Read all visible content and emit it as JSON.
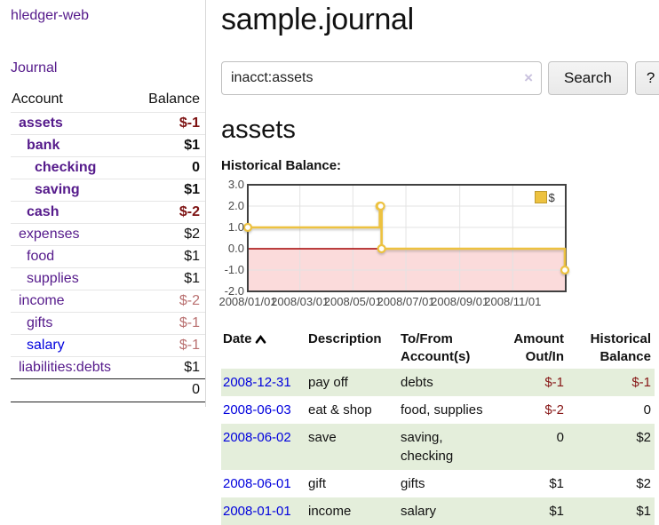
{
  "sidebar": {
    "brand": "hledger-web",
    "journal_label": "Journal",
    "accounts_table": {
      "headers": {
        "account": "Account",
        "balance": "Balance"
      },
      "rows": [
        {
          "name": "assets",
          "depth": 1,
          "balance": "$-1",
          "bold": true
        },
        {
          "name": "bank",
          "depth": 2,
          "balance": "$1",
          "bold": true
        },
        {
          "name": "checking",
          "depth": 3,
          "balance": "0",
          "bold": true
        },
        {
          "name": "saving",
          "depth": 3,
          "balance": "$1",
          "bold": true
        },
        {
          "name": "cash",
          "depth": 2,
          "balance": "$-2",
          "bold": true
        },
        {
          "name": "expenses",
          "depth": 1,
          "balance": "$2",
          "bold": false
        },
        {
          "name": "food",
          "depth": 2,
          "balance": "$1",
          "bold": false
        },
        {
          "name": "supplies",
          "depth": 2,
          "balance": "$1",
          "bold": false
        },
        {
          "name": "income",
          "depth": 1,
          "balance": "$-2",
          "bold": false
        },
        {
          "name": "gifts",
          "depth": 2,
          "balance": "$-1",
          "bold": false
        },
        {
          "name": "salary",
          "depth": 2,
          "balance": "$-1",
          "bold": false,
          "unvisited": true
        },
        {
          "name": "liabilities:debts",
          "depth": 1,
          "balance": "$1",
          "bold": false
        }
      ],
      "total": "0"
    }
  },
  "header": {
    "title": "sample.journal"
  },
  "search": {
    "value": "inacct:assets",
    "clear_icon": "×",
    "button_label": "Search",
    "help_label": "?"
  },
  "account_page": {
    "title": "assets",
    "chart_label": "Historical Balance:"
  },
  "chart_data": {
    "type": "line",
    "step": true,
    "title": "Historical Balance:",
    "xlabel": "",
    "ylabel": "",
    "xlim": [
      "2008-01-01",
      "2009-01-01"
    ],
    "ylim": [
      -2,
      3
    ],
    "yticks": {
      "values": [
        3,
        2,
        1,
        0,
        -1,
        -2
      ],
      "labels": [
        "3.0",
        "2.0",
        "1.0",
        "0.0",
        "-1.0",
        "-2.0"
      ]
    },
    "xticks": {
      "dates": [
        "2008-01-01",
        "2008-03-01",
        "2008-05-01",
        "2008-07-01",
        "2008-09-01",
        "2008-11-01"
      ],
      "labels": [
        "2008/01/01",
        "2008/03/01",
        "2008/05/01",
        "2008/07/01",
        "2008/09/01",
        "2008/11/01"
      ]
    },
    "series": [
      {
        "name": "$",
        "color": "#edc240",
        "points": [
          [
            "2008-01-01",
            1
          ],
          [
            "2008-06-01",
            2
          ],
          [
            "2008-06-02",
            2
          ],
          [
            "2008-06-03",
            0
          ],
          [
            "2008-12-31",
            -1
          ]
        ]
      }
    ],
    "legend": {
      "label": "$",
      "position": "top-right"
    },
    "grid": true,
    "zero_line_color": "#a40000",
    "negative_region_color": "#fbdbdb",
    "frame_color": "#404040"
  },
  "register_table": {
    "headers": {
      "date": "Date",
      "description": "Description",
      "accounts": "To/From Account(s)",
      "amount": "Amount Out/In",
      "balance": "Historical Balance"
    },
    "rows": [
      {
        "date": "2008-12-31",
        "description": "pay off",
        "accounts": "debts",
        "amount": "$-1",
        "balance": "$-1"
      },
      {
        "date": "2008-06-03",
        "description": "eat & shop",
        "accounts": "food, supplies",
        "amount": "$-2",
        "balance": "0"
      },
      {
        "date": "2008-06-02",
        "description": "save",
        "accounts": "saving, checking",
        "amount": "0",
        "balance": "$2"
      },
      {
        "date": "2008-06-01",
        "description": "gift",
        "accounts": "gifts",
        "amount": "$1",
        "balance": "$2"
      },
      {
        "date": "2008-01-01",
        "description": "income",
        "accounts": "salary",
        "amount": "$1",
        "balance": "$1"
      }
    ]
  },
  "colors": {
    "visited_link_purple": "#551a8b",
    "unvisited_link_blue": "#0000dd",
    "negative_dark_red": "#7d1212",
    "negative_faded_red": "#b97070",
    "register_negative_red": "#871717",
    "row_stripe_green": "#e4eedb",
    "series_gold": "#edc240"
  }
}
